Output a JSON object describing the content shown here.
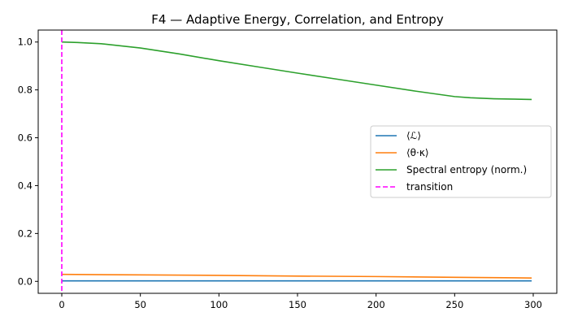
{
  "chart_data": {
    "type": "line",
    "title": "F4 — Adaptive Energy, Correlation, and Entropy",
    "xlabel": "",
    "ylabel": "",
    "xlim": [
      -15,
      315
    ],
    "ylim": [
      -0.05,
      1.05
    ],
    "xticks": [
      0,
      50,
      100,
      150,
      200,
      250,
      300
    ],
    "yticks": [
      0.0,
      0.2,
      0.4,
      0.6,
      0.8,
      1.0
    ],
    "grid": false,
    "legend_position": "center-right",
    "series": [
      {
        "name": "⟨ℒ⟩",
        "color": "#1f77b4",
        "x": [
          0,
          50,
          100,
          150,
          200,
          250,
          299
        ],
        "y": [
          0.002,
          0.002,
          0.002,
          0.002,
          0.002,
          0.002,
          0.002
        ]
      },
      {
        "name": "⟨θ·κ⟩",
        "color": "#ff7f0e",
        "x": [
          0,
          50,
          100,
          150,
          200,
          250,
          299
        ],
        "y": [
          0.029,
          0.027,
          0.025,
          0.022,
          0.02,
          0.017,
          0.014
        ]
      },
      {
        "name": "Spectral entropy (norm.)",
        "color": "#2ca02c",
        "x": [
          0,
          10,
          25,
          50,
          75,
          100,
          125,
          150,
          175,
          200,
          225,
          250,
          260,
          275,
          299
        ],
        "y": [
          1.0,
          0.998,
          0.993,
          0.975,
          0.95,
          0.922,
          0.896,
          0.87,
          0.845,
          0.82,
          0.795,
          0.772,
          0.767,
          0.763,
          0.76
        ]
      }
    ],
    "vlines": [
      {
        "name": "transition",
        "x": 0,
        "color": "#ff00ff",
        "style": "dashed"
      }
    ]
  }
}
